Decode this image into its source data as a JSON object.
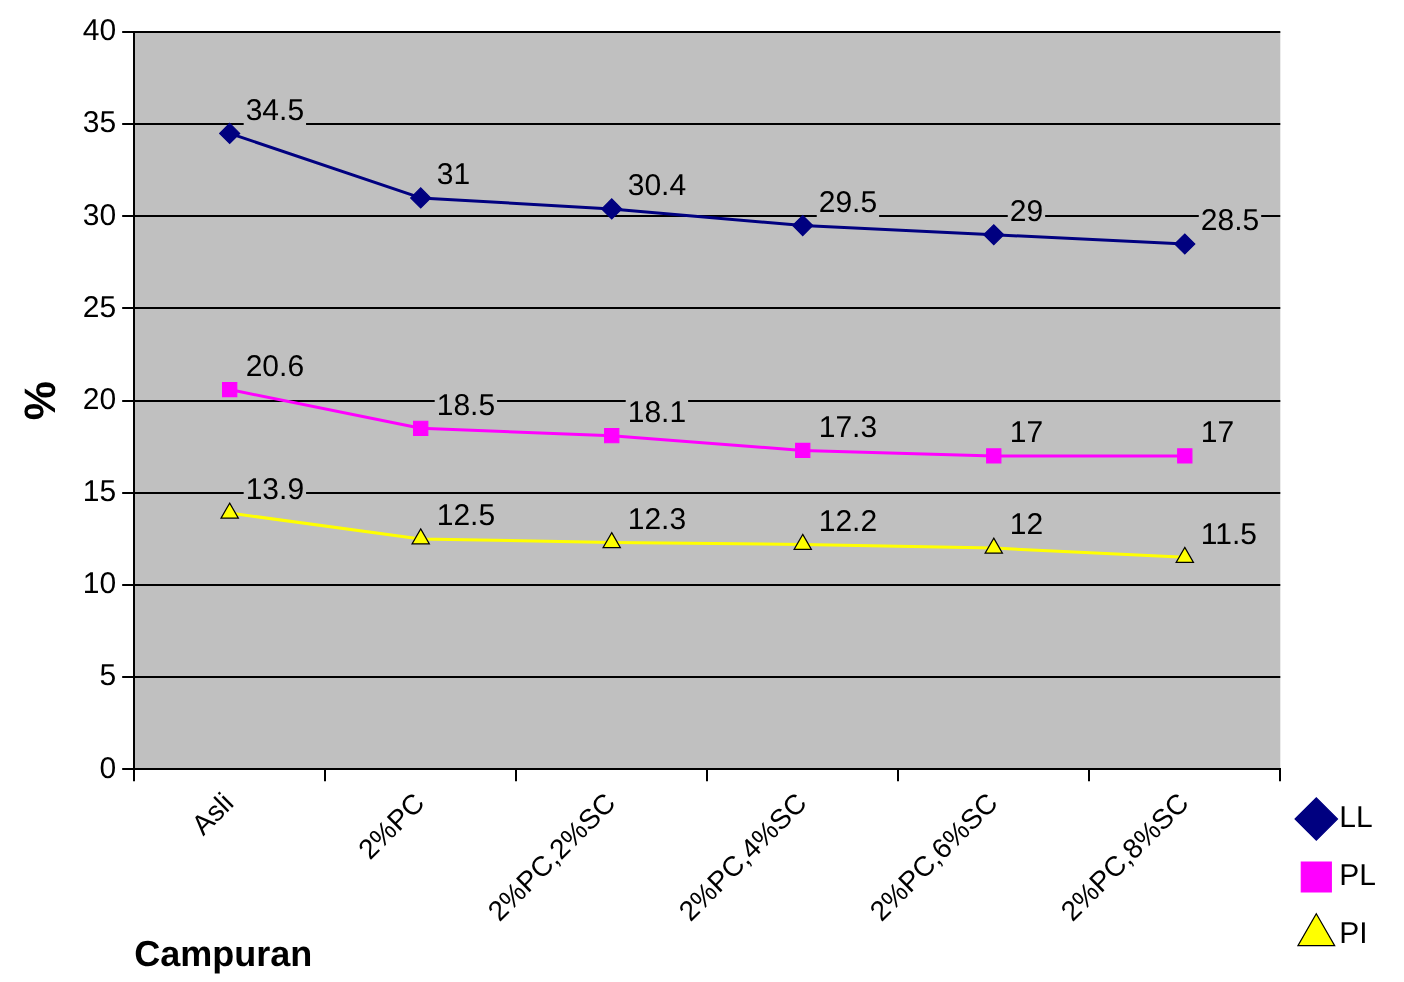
{
  "chart_data": {
    "type": "line",
    "xlabel": "Campuran",
    "ylabel": "%",
    "categories": [
      "Asli",
      "2%PC",
      "2%PC,2%SC",
      "2%PC,4%SC",
      "2%PC,6%SC",
      "2%PC,8%SC"
    ],
    "series": [
      {
        "name": "LL",
        "color": "#000080",
        "marker": "diamond",
        "values": [
          34.5,
          31,
          30.4,
          29.5,
          29,
          28.5
        ]
      },
      {
        "name": "PL",
        "color": "#ff00ff",
        "marker": "square",
        "values": [
          20.6,
          18.5,
          18.1,
          17.3,
          17,
          17
        ]
      },
      {
        "name": "PI",
        "color": "#ffff00",
        "marker": "triangle",
        "values": [
          13.9,
          12.5,
          12.3,
          12.2,
          12,
          11.5
        ]
      }
    ],
    "ylim": [
      0,
      40
    ],
    "yticks": [
      0,
      5,
      10,
      15,
      20,
      25,
      30,
      35,
      40
    ],
    "grid": "y",
    "legend": "bottom right",
    "data_labels": true,
    "line_style": "solid"
  }
}
